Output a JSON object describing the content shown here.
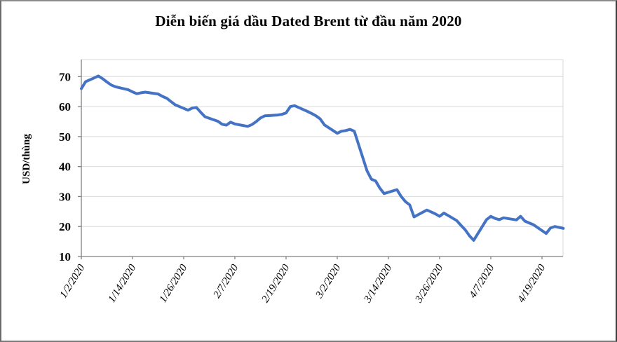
{
  "chart_data": {
    "type": "line",
    "title": "Diễn biến giá dầu Dated Brent từ đầu năm 2020",
    "xlabel": "",
    "ylabel": "USD/thùng",
    "ylim": [
      10,
      75.8
    ],
    "yticks": [
      10,
      20,
      30,
      40,
      50,
      60,
      70
    ],
    "xtick_labels": [
      "1/2/2020",
      "1/14/2020",
      "1/26/2020",
      "2/7/2020",
      "2/19/2020",
      "3/2/2020",
      "3/14/2020",
      "3/26/2020",
      "4/7/2020",
      "4/19/2020"
    ],
    "grid": true,
    "legend_position": "none",
    "line_color": "#4472c4",
    "gridline_color": "#d9d9d9",
    "axis_color": "#808080",
    "x": [
      "1/2/2020",
      "1/3/2020",
      "1/6/2020",
      "1/7/2020",
      "1/8/2020",
      "1/9/2020",
      "1/10/2020",
      "1/13/2020",
      "1/14/2020",
      "1/15/2020",
      "1/16/2020",
      "1/17/2020",
      "1/20/2020",
      "1/21/2020",
      "1/22/2020",
      "1/23/2020",
      "1/24/2020",
      "1/27/2020",
      "1/28/2020",
      "1/29/2020",
      "1/30/2020",
      "1/31/2020",
      "2/3/2020",
      "2/4/2020",
      "2/5/2020",
      "2/6/2020",
      "2/7/2020",
      "2/10/2020",
      "2/11/2020",
      "2/12/2020",
      "2/13/2020",
      "2/14/2020",
      "2/17/2020",
      "2/18/2020",
      "2/19/2020",
      "2/20/2020",
      "2/21/2020",
      "2/24/2020",
      "2/25/2020",
      "2/26/2020",
      "2/27/2020",
      "2/28/2020",
      "3/2/2020",
      "3/3/2020",
      "3/4/2020",
      "3/5/2020",
      "3/6/2020",
      "3/9/2020",
      "3/10/2020",
      "3/11/2020",
      "3/12/2020",
      "3/13/2020",
      "3/16/2020",
      "3/17/2020",
      "3/18/2020",
      "3/19/2020",
      "3/20/2020",
      "3/23/2020",
      "3/24/2020",
      "3/25/2020",
      "3/26/2020",
      "3/27/2020",
      "3/30/2020",
      "3/31/2020",
      "4/1/2020",
      "4/2/2020",
      "4/3/2020",
      "4/6/2020",
      "4/7/2020",
      "4/8/2020",
      "4/9/2020",
      "4/10/2020",
      "4/13/2020",
      "4/14/2020",
      "4/15/2020",
      "4/16/2020",
      "4/17/2020",
      "4/20/2020",
      "4/21/2020",
      "4/22/2020",
      "4/23/2020",
      "4/24/2020"
    ],
    "series": [
      {
        "name": "Dated Brent",
        "values": [
          66.0,
          68.3,
          70.2,
          69.3,
          68.2,
          67.2,
          66.6,
          65.6,
          64.9,
          64.3,
          64.6,
          64.8,
          64.2,
          63.4,
          62.8,
          61.7,
          60.6,
          58.8,
          59.5,
          59.7,
          58.1,
          56.6,
          55.1,
          54.1,
          53.8,
          54.8,
          54.2,
          53.4,
          54.0,
          55.0,
          56.2,
          56.9,
          57.2,
          57.4,
          57.9,
          60.0,
          60.3,
          58.4,
          57.7,
          56.9,
          55.9,
          53.9,
          51.1,
          51.8,
          52.0,
          52.4,
          51.8,
          38.5,
          35.8,
          35.2,
          32.8,
          31.0,
          32.3,
          30.0,
          28.3,
          27.2,
          23.2,
          25.5,
          24.9,
          24.2,
          23.4,
          24.5,
          22.0,
          20.4,
          18.9,
          16.9,
          15.4,
          22.3,
          23.4,
          22.7,
          22.3,
          22.9,
          22.2,
          23.4,
          21.8,
          21.2,
          20.6,
          17.7,
          19.5,
          20.0,
          19.7,
          19.4
        ]
      }
    ]
  }
}
